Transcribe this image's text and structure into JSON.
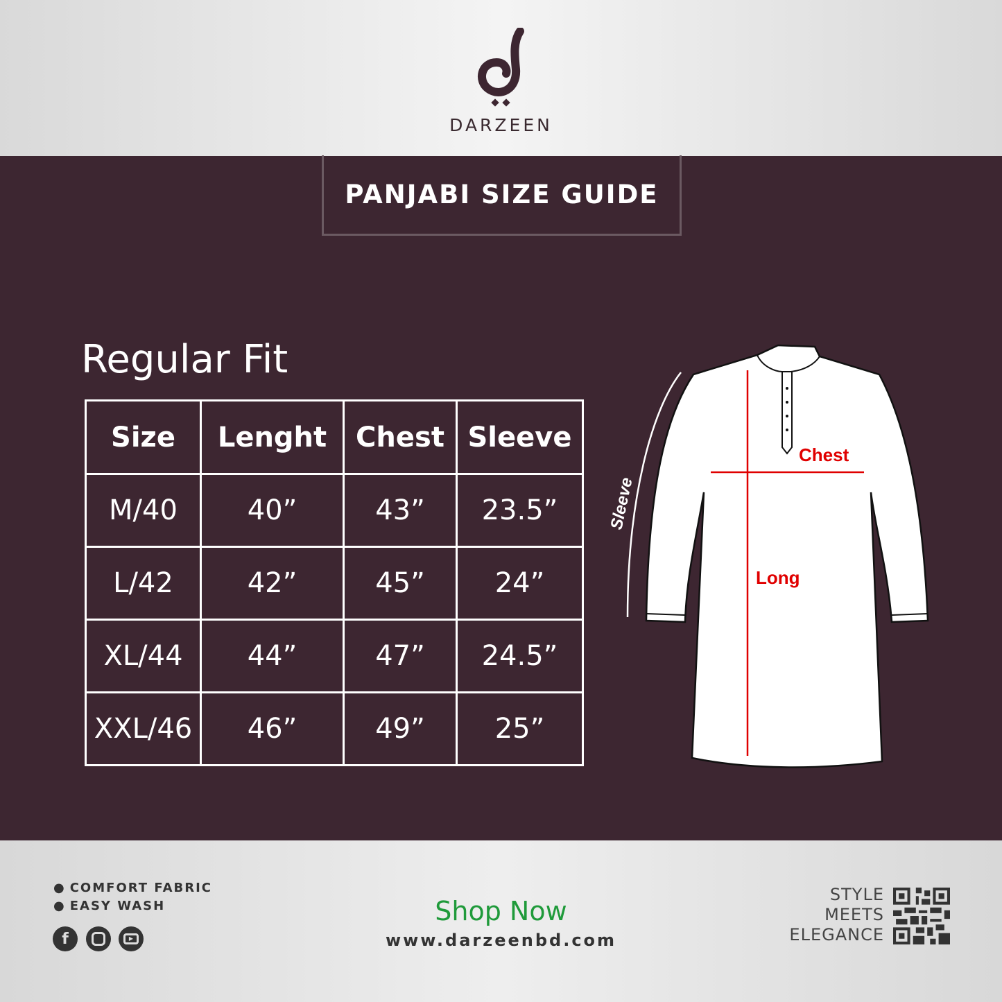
{
  "brand": {
    "name": "DARZEEN"
  },
  "header": {
    "title": "PANJABI SIZE GUIDE"
  },
  "fit": "Regular Fit",
  "table": {
    "headers": [
      "Size",
      "Lenght",
      "Chest",
      "Sleeve"
    ],
    "rows": [
      [
        "M/40",
        "40”",
        "43”",
        "23.5”"
      ],
      [
        "L/42",
        "42”",
        "45”",
        "24”"
      ],
      [
        "XL/44",
        "44”",
        "47”",
        "24.5”"
      ],
      [
        "XXL/46",
        "46”",
        "49”",
        "25”"
      ]
    ]
  },
  "diagram": {
    "chest": "Chest",
    "long": "Long",
    "sleeve": "Sleeve",
    "measure_color": "#e00000"
  },
  "footer": {
    "features": [
      "COMFORT FABRIC",
      "EASY WASH"
    ],
    "social": [
      "facebook-icon",
      "instagram-icon",
      "youtube-icon"
    ],
    "shop": "Shop Now",
    "url": "www.darzeenbd.com",
    "tagline": [
      "STYLE",
      "MEETS",
      "ELEGANCE"
    ],
    "accent": "#1f9a3a"
  }
}
